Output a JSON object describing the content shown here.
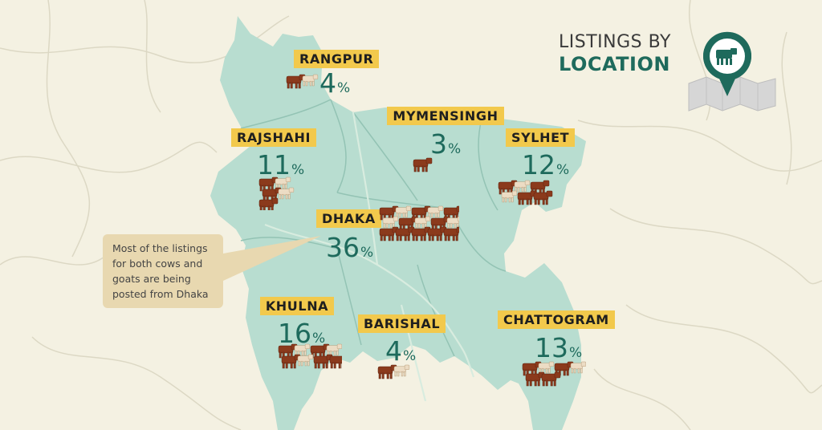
{
  "title": {
    "line1": "LISTINGS BY",
    "line2": "LOCATION"
  },
  "header_icon": "map-pin-cow-icon",
  "callout": {
    "text": "Most of the listings for both cows and goats are being posted from Dhaka"
  },
  "regions": [
    {
      "name": "RANGPUR",
      "value": "4",
      "unit": "%",
      "cows": 1,
      "goats": 1
    },
    {
      "name": "MYMENSINGH",
      "value": "3",
      "unit": "%",
      "cows": 1,
      "goats": 0
    },
    {
      "name": "RAJSHAHI",
      "value": "11",
      "unit": "%",
      "cows": 3,
      "goats": 2
    },
    {
      "name": "SYLHET",
      "value": "12",
      "unit": "%",
      "cows": 4,
      "goats": 2
    },
    {
      "name": "DHAKA",
      "value": "36",
      "unit": "%",
      "cows": 10,
      "goats": 5
    },
    {
      "name": "KHULNA",
      "value": "16",
      "unit": "%",
      "cows": 5,
      "goats": 3
    },
    {
      "name": "BARISHAL",
      "value": "4",
      "unit": "%",
      "cows": 1,
      "goats": 1
    },
    {
      "name": "CHATTOGRAM",
      "value": "13",
      "unit": "%",
      "cows": 4,
      "goats": 2
    }
  ],
  "colors": {
    "background": "#f4f1e2",
    "land": "#b8ddd0",
    "label_bg": "#f2c94c",
    "value_text": "#1e6a5c",
    "cow": "#8b3a1c",
    "goat": "#ecdcc4",
    "callout_bg": "#e8d8b0"
  }
}
